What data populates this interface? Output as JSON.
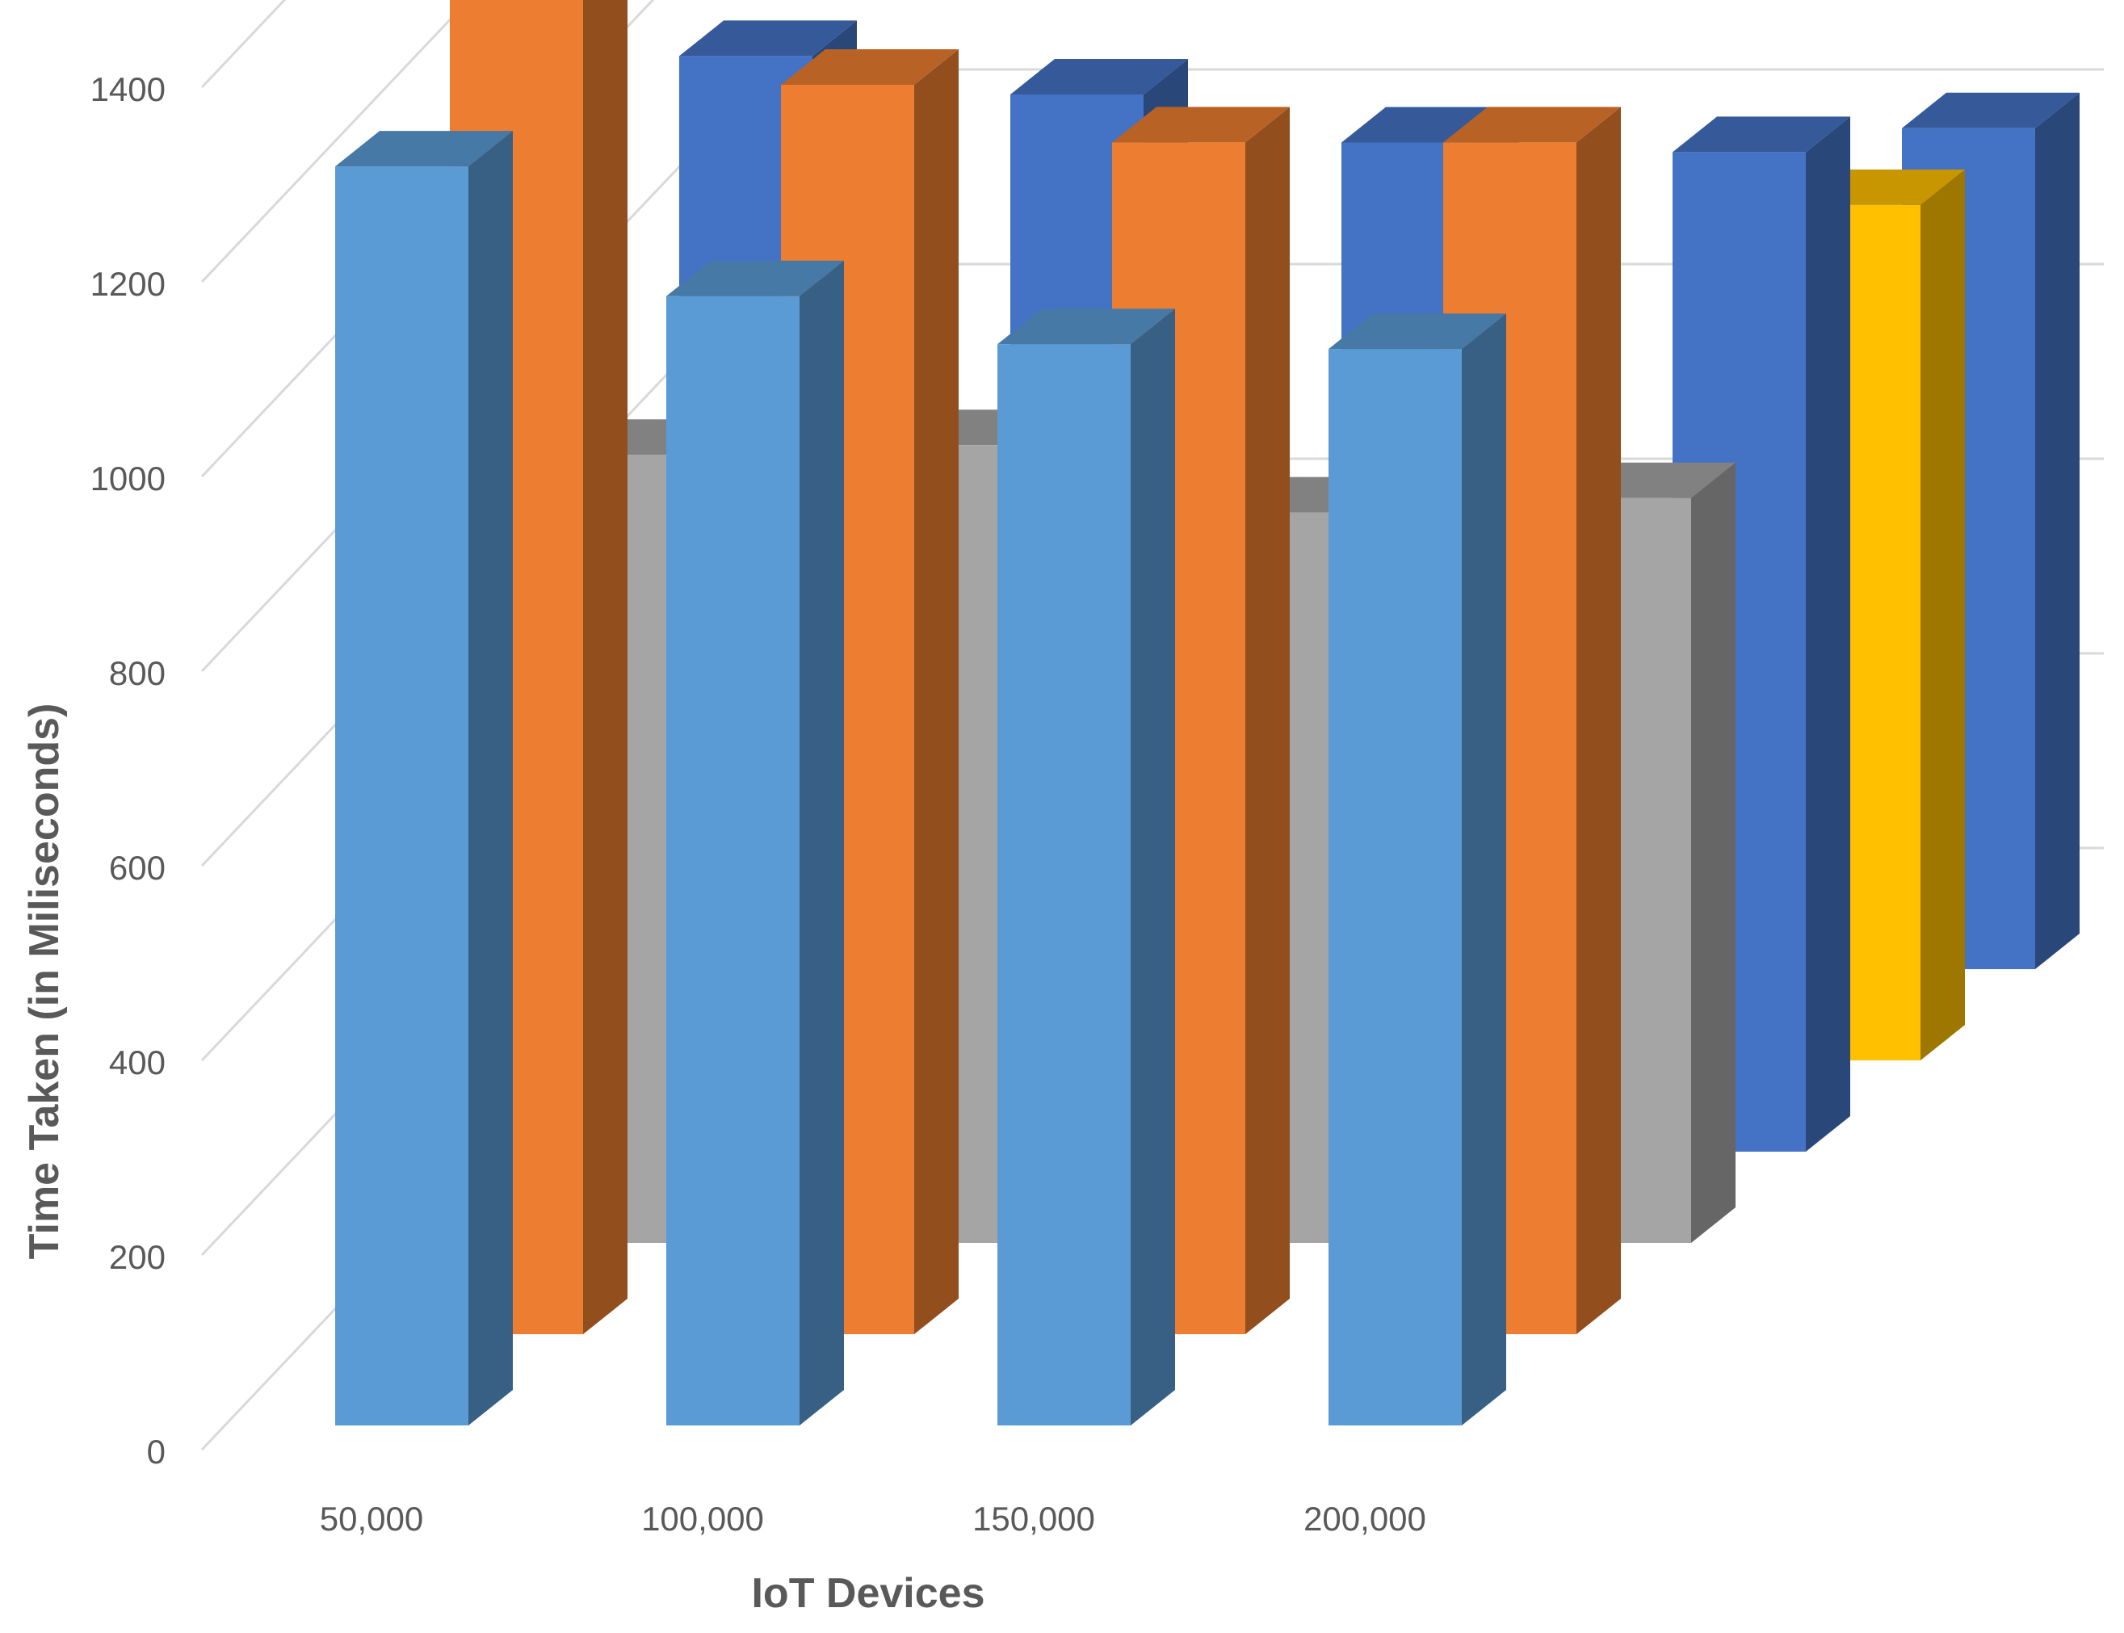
{
  "chart_data": {
    "type": "bar",
    "title": "",
    "xlabel": "IoT Devices",
    "ylabel": "Time Taken (in Miliseconds)",
    "categories": [
      "50,000",
      "100,000",
      "150,000",
      "200,000"
    ],
    "y_ticks": [
      "0",
      "200",
      "400",
      "600",
      "800",
      "1000",
      "1200",
      "1400"
    ],
    "ylim": [
      0,
      1400
    ],
    "grid": true,
    "style": "3d-column",
    "series": [
      {
        "color": "#5B9BD5",
        "values": [
          1310,
          1175,
          1125,
          1120
        ]
      },
      {
        "color": "#ED7D31",
        "values": [
          1390,
          1300,
          1240,
          1240
        ]
      },
      {
        "color": "#A5A5A5",
        "values": [
          820,
          830,
          760,
          775
        ]
      },
      {
        "color": "#4472C4",
        "values": [
          1140,
          1100,
          1050,
          1040
        ]
      },
      {
        "color": "#FFC000",
        "values": [
          null,
          null,
          null,
          890
        ]
      },
      {
        "color": "#4472C4",
        "values": [
          null,
          null,
          null,
          875
        ]
      }
    ]
  }
}
